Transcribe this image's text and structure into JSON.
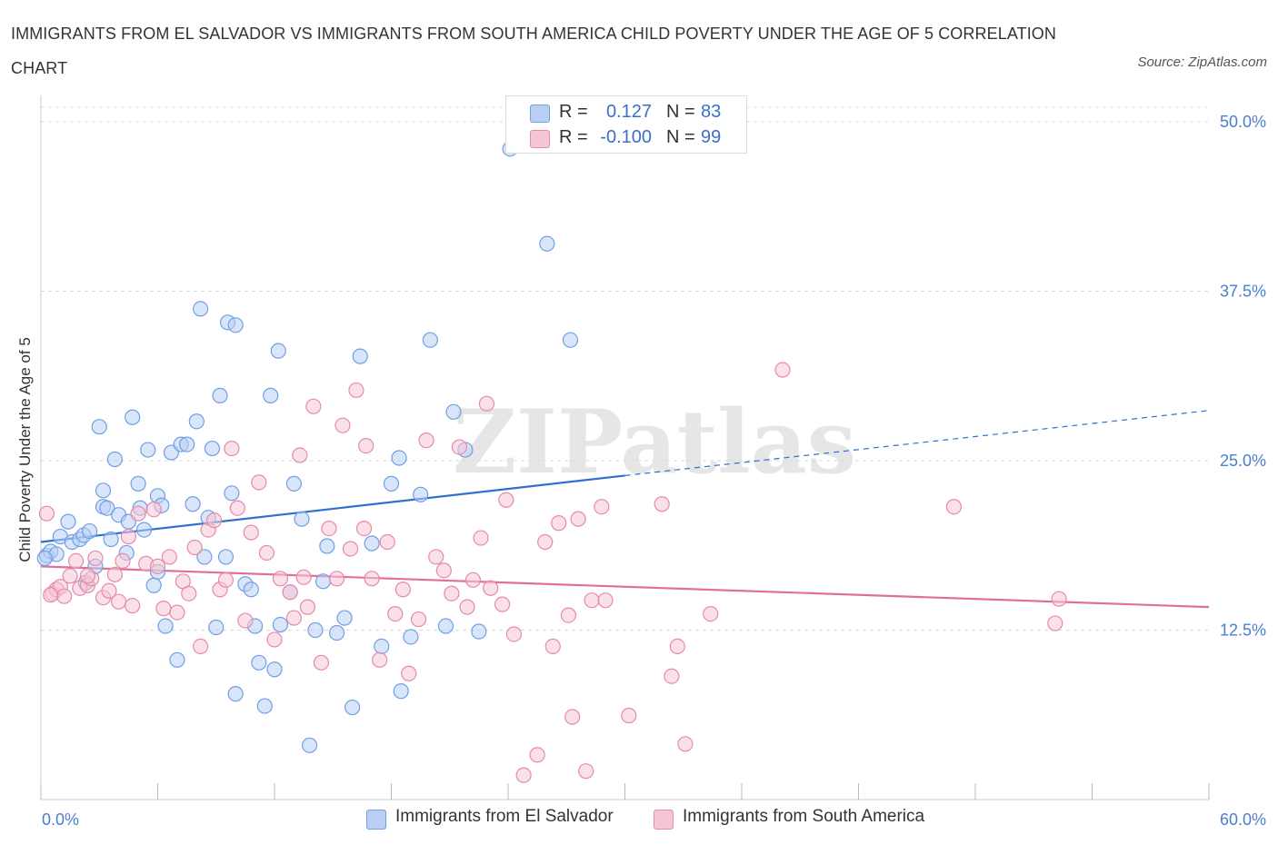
{
  "title": "IMMIGRANTS FROM EL SALVADOR VS IMMIGRANTS FROM SOUTH AMERICA CHILD POVERTY UNDER THE AGE OF 5 CORRELATION CHART",
  "source": "Source: ZipAtlas.com",
  "watermark": "ZIPatlas",
  "colors": {
    "blue": "#6f9fe6",
    "blue_fill": "#b9d0f4",
    "blue_line": "#2f6fd0",
    "pink": "#e889aa",
    "pink_fill": "#f6c6d6",
    "pink_line": "#e0709a",
    "tick": "#4a7fd0"
  },
  "legend": {
    "r_label": "R =",
    "n_label": "N =",
    "rows": [
      {
        "r": "0.127",
        "n": "83"
      },
      {
        "r": "-0.100",
        "n": "99"
      }
    ]
  },
  "chart_data": {
    "type": "scatter",
    "xlabel": "",
    "ylabel": "Child Poverty Under the Age of 5",
    "xlim": [
      0,
      60
    ],
    "ylim": [
      0,
      50
    ],
    "x_tick_labels": [
      "0.0%",
      "60.0%"
    ],
    "y_ticks": [
      12.5,
      25.0,
      37.5,
      50.0
    ],
    "y_tick_labels": [
      "12.5%",
      "25.0%",
      "37.5%",
      "50.0%"
    ],
    "grid": true,
    "legend_position": "top-center",
    "series": [
      {
        "name": "Immigrants from El Salvador",
        "color": "#6f9fe6",
        "trend": {
          "x0": 0,
          "y0": 19.0,
          "x1": 30,
          "y1": 23.9,
          "dashed_to_x": 60,
          "dashed_to_y": 28.7
        },
        "points": [
          [
            0.3,
            18.0
          ],
          [
            0.5,
            18.3
          ],
          [
            0.8,
            18.1
          ],
          [
            1.0,
            19.4
          ],
          [
            1.4,
            20.5
          ],
          [
            1.6,
            19.0
          ],
          [
            2.0,
            19.2
          ],
          [
            2.2,
            19.5
          ],
          [
            2.5,
            19.8
          ],
          [
            2.3,
            16.0
          ],
          [
            2.8,
            17.2
          ],
          [
            3.0,
            27.5
          ],
          [
            3.2,
            21.6
          ],
          [
            3.4,
            21.5
          ],
          [
            3.6,
            19.2
          ],
          [
            3.8,
            25.1
          ],
          [
            4.0,
            21.0
          ],
          [
            4.4,
            18.2
          ],
          [
            4.5,
            20.5
          ],
          [
            4.7,
            28.2
          ],
          [
            5.0,
            23.3
          ],
          [
            5.1,
            21.5
          ],
          [
            5.3,
            19.9
          ],
          [
            5.5,
            25.8
          ],
          [
            5.8,
            15.8
          ],
          [
            6.0,
            22.4
          ],
          [
            6.2,
            21.7
          ],
          [
            6.4,
            12.8
          ],
          [
            6.7,
            25.6
          ],
          [
            7.0,
            10.3
          ],
          [
            7.2,
            26.2
          ],
          [
            7.5,
            26.2
          ],
          [
            7.8,
            21.8
          ],
          [
            8.0,
            27.9
          ],
          [
            8.4,
            17.9
          ],
          [
            8.6,
            20.8
          ],
          [
            8.8,
            25.9
          ],
          [
            9.0,
            12.7
          ],
          [
            9.2,
            29.8
          ],
          [
            9.5,
            17.9
          ],
          [
            9.8,
            22.6
          ],
          [
            10.0,
            7.8
          ],
          [
            10.5,
            15.9
          ],
          [
            10.8,
            15.5
          ],
          [
            11.0,
            12.8
          ],
          [
            11.2,
            10.1
          ],
          [
            11.5,
            6.9
          ],
          [
            12.0,
            9.6
          ],
          [
            12.3,
            12.9
          ],
          [
            12.8,
            15.3
          ],
          [
            13.0,
            23.3
          ],
          [
            13.4,
            20.7
          ],
          [
            13.8,
            4.0
          ],
          [
            14.1,
            12.5
          ],
          [
            14.7,
            18.7
          ],
          [
            15.2,
            12.3
          ],
          [
            15.6,
            13.4
          ],
          [
            16.0,
            6.8
          ],
          [
            16.4,
            32.7
          ],
          [
            17.0,
            18.9
          ],
          [
            17.5,
            11.3
          ],
          [
            18.0,
            23.3
          ],
          [
            18.4,
            25.2
          ],
          [
            19.0,
            12.0
          ],
          [
            19.5,
            22.5
          ],
          [
            20.0,
            33.9
          ],
          [
            20.8,
            12.8
          ],
          [
            21.2,
            28.6
          ],
          [
            21.8,
            25.8
          ],
          [
            22.5,
            12.4
          ],
          [
            24.1,
            48.0
          ],
          [
            26.0,
            41.0
          ],
          [
            27.2,
            33.9
          ],
          [
            0.2,
            17.8
          ],
          [
            3.2,
            22.8
          ],
          [
            6.0,
            16.8
          ],
          [
            8.2,
            36.2
          ],
          [
            9.6,
            35.2
          ],
          [
            10.0,
            35.0
          ],
          [
            12.2,
            33.1
          ],
          [
            14.5,
            16.1
          ],
          [
            18.5,
            8.0
          ],
          [
            11.8,
            29.8
          ]
        ]
      },
      {
        "name": "Immigrants from South America",
        "color": "#e889aa",
        "trend": {
          "x0": 0,
          "y0": 17.2,
          "x1": 60,
          "y1": 14.2
        },
        "points": [
          [
            0.3,
            21.1
          ],
          [
            0.6,
            15.2
          ],
          [
            0.8,
            15.5
          ],
          [
            1.0,
            15.7
          ],
          [
            1.2,
            15.0
          ],
          [
            1.5,
            16.5
          ],
          [
            1.8,
            17.6
          ],
          [
            2.0,
            15.6
          ],
          [
            2.4,
            15.8
          ],
          [
            2.6,
            16.3
          ],
          [
            2.8,
            17.8
          ],
          [
            3.2,
            14.9
          ],
          [
            3.5,
            15.4
          ],
          [
            3.8,
            16.6
          ],
          [
            4.0,
            14.6
          ],
          [
            4.2,
            17.6
          ],
          [
            4.5,
            19.4
          ],
          [
            4.7,
            14.3
          ],
          [
            5.0,
            21.1
          ],
          [
            5.4,
            17.4
          ],
          [
            5.8,
            21.4
          ],
          [
            6.0,
            17.2
          ],
          [
            6.3,
            14.1
          ],
          [
            6.6,
            17.9
          ],
          [
            7.0,
            13.8
          ],
          [
            7.3,
            16.1
          ],
          [
            7.6,
            15.2
          ],
          [
            7.9,
            18.6
          ],
          [
            8.2,
            11.3
          ],
          [
            8.6,
            19.9
          ],
          [
            8.9,
            20.6
          ],
          [
            9.2,
            15.5
          ],
          [
            9.5,
            16.2
          ],
          [
            9.8,
            25.9
          ],
          [
            10.1,
            21.5
          ],
          [
            10.5,
            13.2
          ],
          [
            10.8,
            19.7
          ],
          [
            11.2,
            23.4
          ],
          [
            11.6,
            18.2
          ],
          [
            12.0,
            11.8
          ],
          [
            12.3,
            16.3
          ],
          [
            12.8,
            15.3
          ],
          [
            13.0,
            13.4
          ],
          [
            13.3,
            25.4
          ],
          [
            13.7,
            14.2
          ],
          [
            14.0,
            29.0
          ],
          [
            14.4,
            10.1
          ],
          [
            14.8,
            20.0
          ],
          [
            15.2,
            16.3
          ],
          [
            15.5,
            27.6
          ],
          [
            15.9,
            18.5
          ],
          [
            16.2,
            30.2
          ],
          [
            16.6,
            20.0
          ],
          [
            17.0,
            16.3
          ],
          [
            17.4,
            10.3
          ],
          [
            17.8,
            19.0
          ],
          [
            18.2,
            13.7
          ],
          [
            18.6,
            15.5
          ],
          [
            18.9,
            9.3
          ],
          [
            19.4,
            13.3
          ],
          [
            19.8,
            26.5
          ],
          [
            20.3,
            17.9
          ],
          [
            20.7,
            16.9
          ],
          [
            21.1,
            15.2
          ],
          [
            21.5,
            26.0
          ],
          [
            21.9,
            14.2
          ],
          [
            22.2,
            16.2
          ],
          [
            22.6,
            19.3
          ],
          [
            23.1,
            15.6
          ],
          [
            23.7,
            14.4
          ],
          [
            23.9,
            22.1
          ],
          [
            24.3,
            12.2
          ],
          [
            24.8,
            1.8
          ],
          [
            25.5,
            3.3
          ],
          [
            25.9,
            19.0
          ],
          [
            26.3,
            11.3
          ],
          [
            26.6,
            20.4
          ],
          [
            27.1,
            13.6
          ],
          [
            27.3,
            6.1
          ],
          [
            27.6,
            20.7
          ],
          [
            28.0,
            2.1
          ],
          [
            28.3,
            14.7
          ],
          [
            28.8,
            21.6
          ],
          [
            29.0,
            14.7
          ],
          [
            30.2,
            6.2
          ],
          [
            31.9,
            21.8
          ],
          [
            32.7,
            11.3
          ],
          [
            32.4,
            9.1
          ],
          [
            33.1,
            4.1
          ],
          [
            34.4,
            13.7
          ],
          [
            38.1,
            31.7
          ],
          [
            46.9,
            21.6
          ],
          [
            52.1,
            13.0
          ],
          [
            52.3,
            14.8
          ],
          [
            0.5,
            15.1
          ],
          [
            2.4,
            16.5
          ],
          [
            13.5,
            16.4
          ],
          [
            16.7,
            26.1
          ],
          [
            22.9,
            29.2
          ]
        ]
      }
    ]
  }
}
